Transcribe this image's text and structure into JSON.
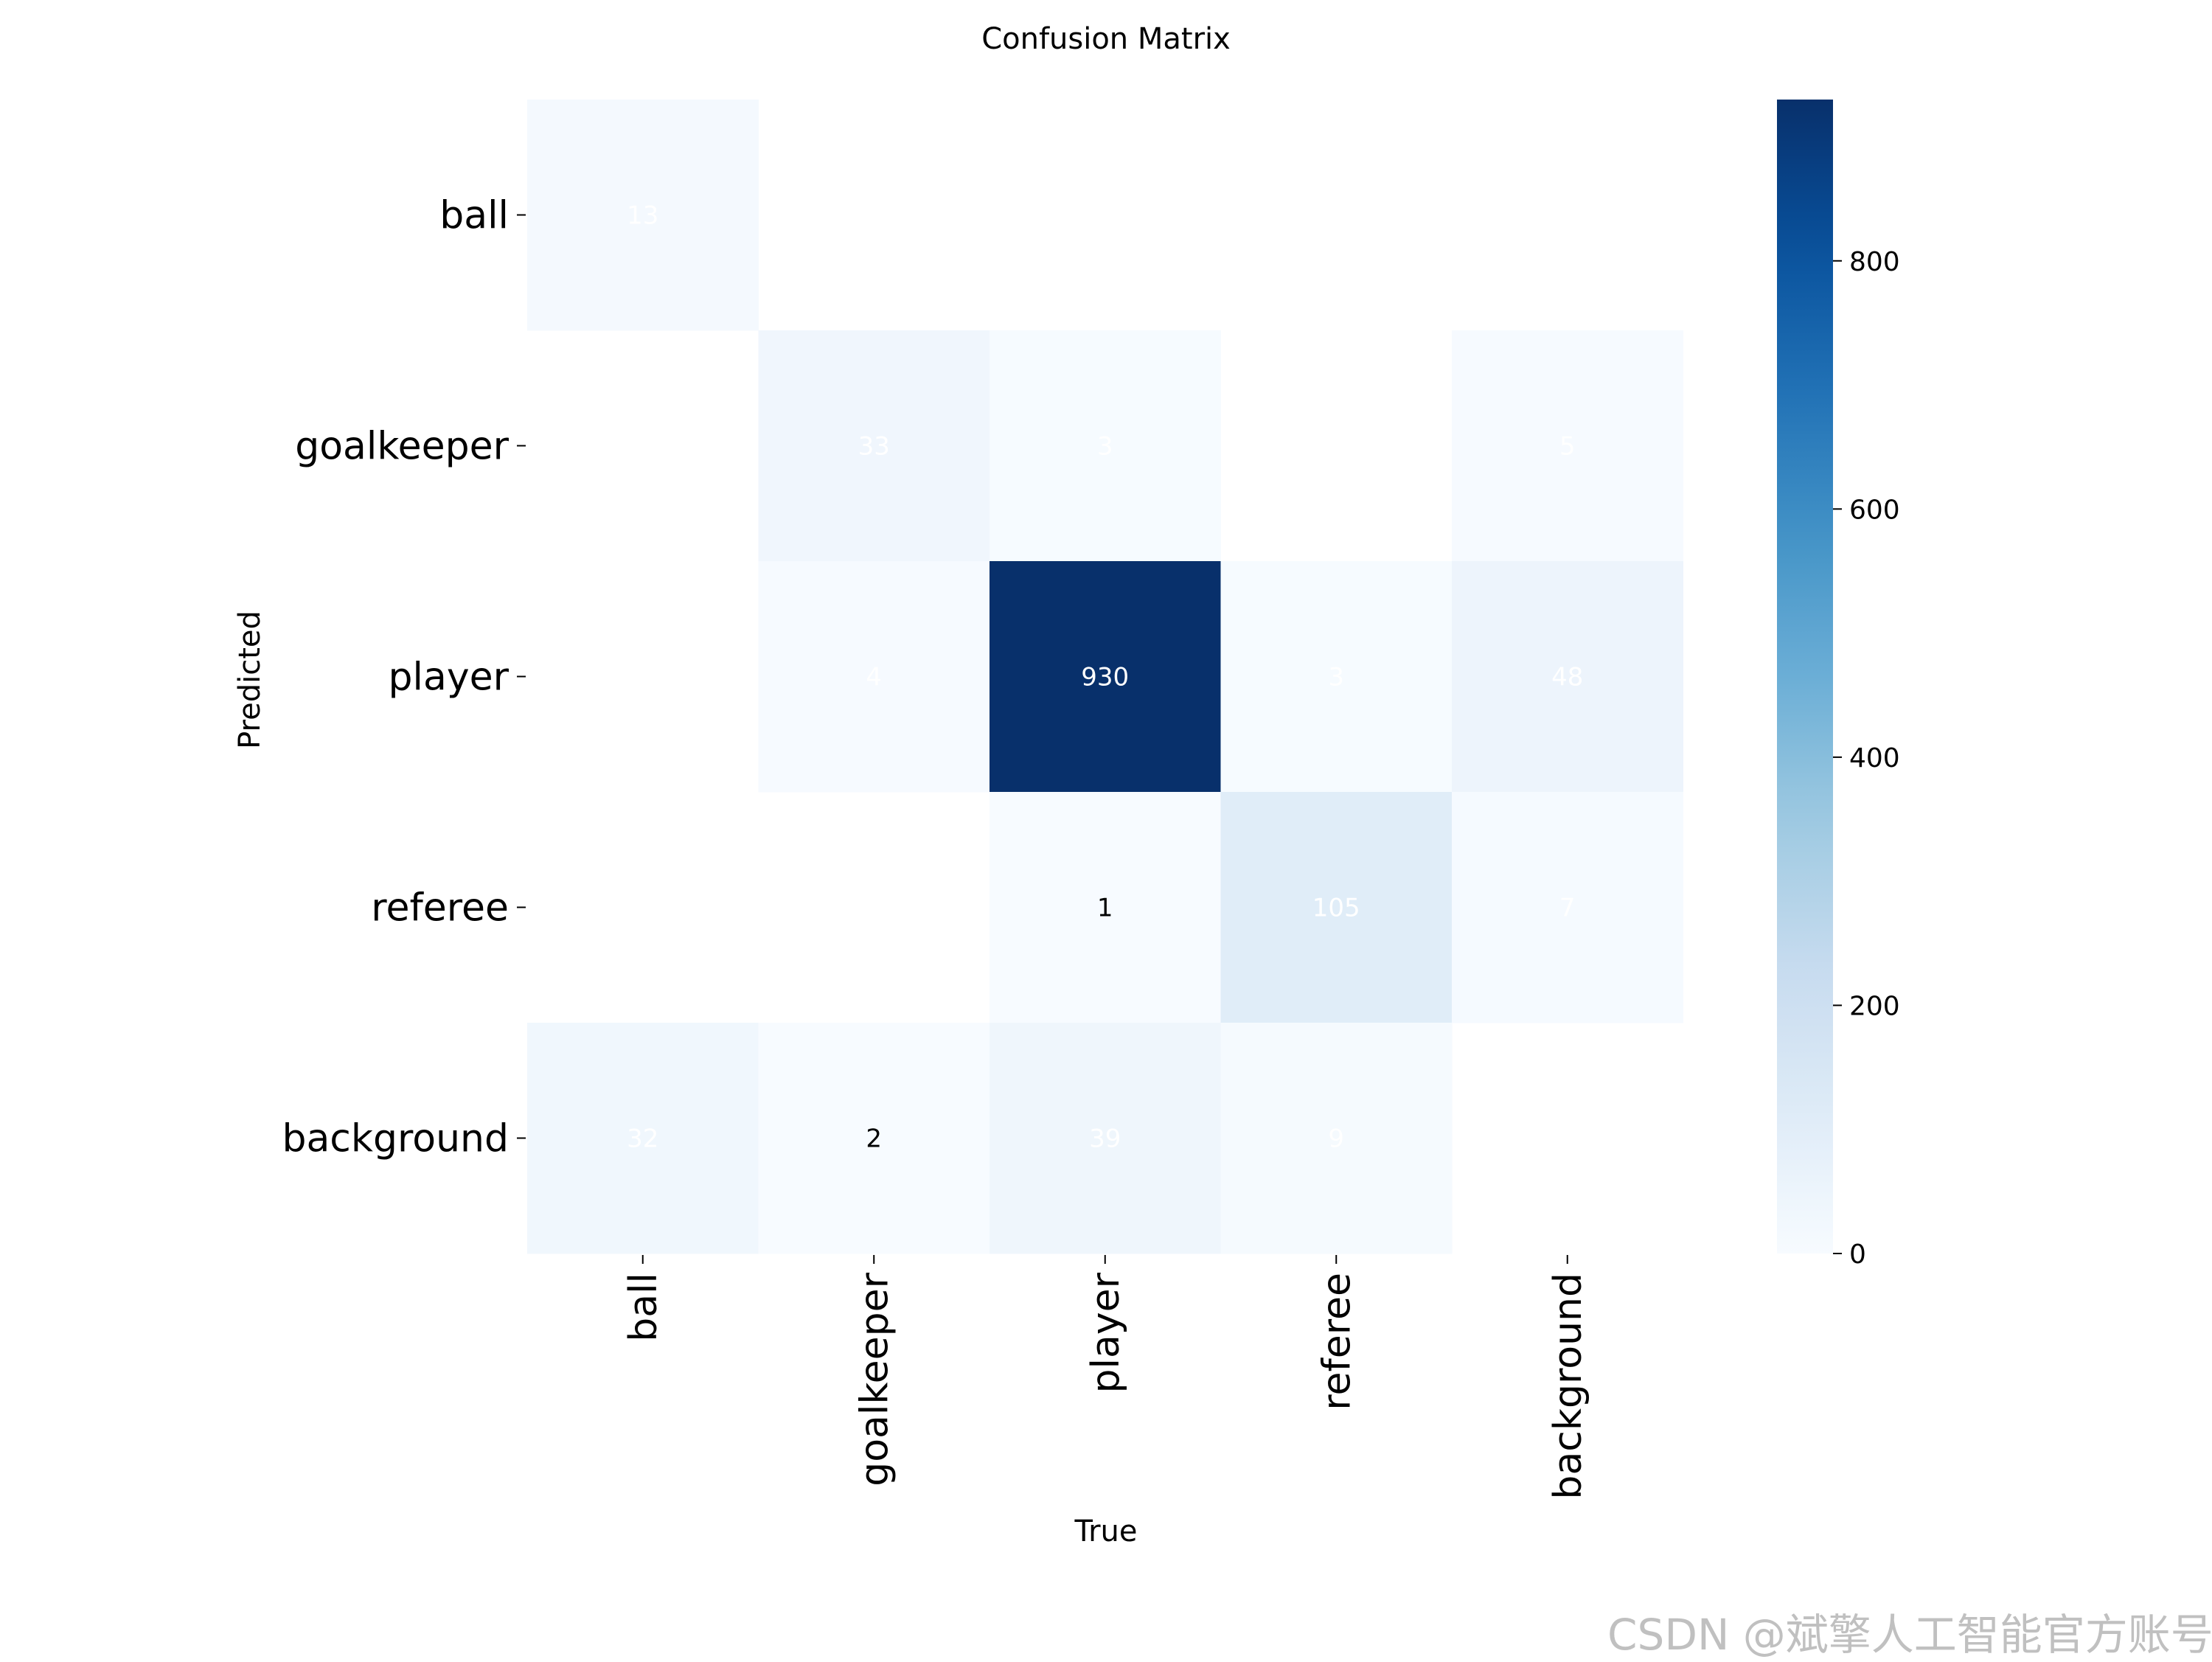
{
  "chart_data": {
    "type": "heatmap",
    "title": "Confusion Matrix",
    "xlabel": "True",
    "ylabel": "Predicted",
    "x_categories": [
      "ball",
      "goalkeeper",
      "player",
      "referee",
      "background"
    ],
    "y_categories": [
      "ball",
      "goalkeeper",
      "player",
      "referee",
      "background"
    ],
    "matrix": [
      [
        13,
        0,
        0,
        0,
        0
      ],
      [
        0,
        33,
        3,
        0,
        5
      ],
      [
        0,
        4,
        930,
        3,
        48
      ],
      [
        0,
        0,
        1,
        105,
        7
      ],
      [
        32,
        2,
        39,
        9,
        0
      ]
    ],
    "colormap": "Blues",
    "colorbar": {
      "min": 0,
      "max": 930,
      "ticks": [
        0,
        200,
        400,
        600,
        800
      ]
    },
    "colors": {
      "low": "#f7fbff",
      "high": "#08306b"
    }
  },
  "watermark": "CSDN @斌擎人工智能官方账号"
}
